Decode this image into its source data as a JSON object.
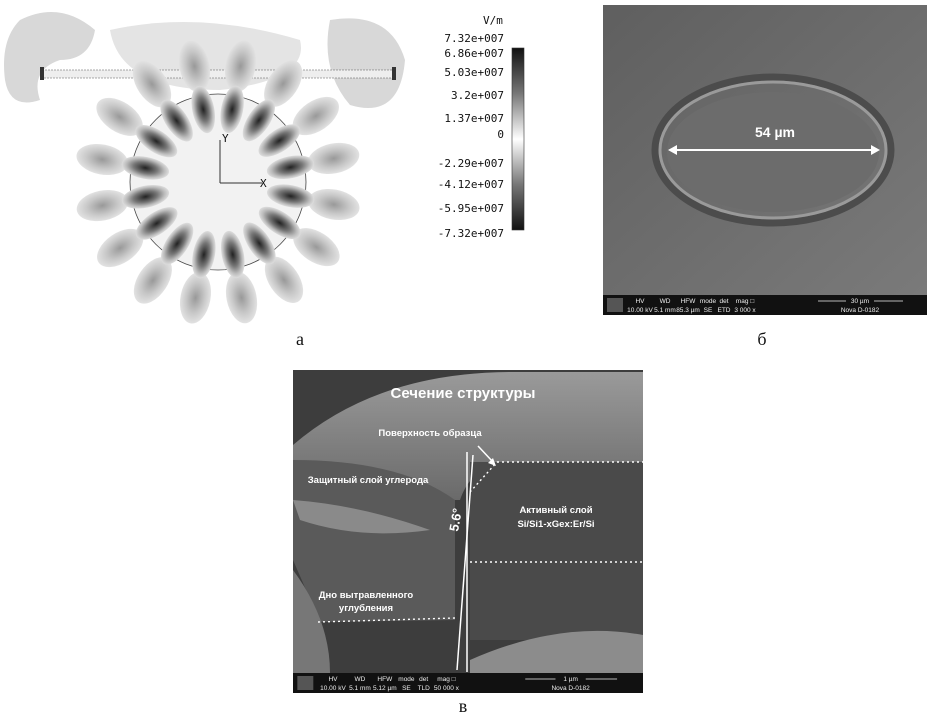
{
  "panel_a": {
    "unit": "V/m",
    "scale": [
      "7.32e+007",
      "6.86e+007",
      "5.03e+007",
      "3.2e+007",
      "1.37e+007",
      "0",
      "-2.29e+007",
      "-4.12e+007",
      "-5.95e+007",
      "-7.32e+007"
    ],
    "axis_y": "Y",
    "axis_x": "X",
    "caption": "а"
  },
  "panel_b": {
    "dimension": "54 µm",
    "info_bar": {
      "headers": [
        "HV",
        "WD",
        "HFW",
        "mode",
        "det",
        "mag □"
      ],
      "values": [
        "10.00 kV",
        "5.1 mm",
        "85.3 µm",
        "SE",
        "ETD",
        "3 000 x"
      ],
      "scale": "30 µm",
      "model": "Nova D-0182"
    },
    "caption": "б"
  },
  "panel_c": {
    "title": "Сечение структуры",
    "surface": "Поверхность образца",
    "carbon": "Защитный слой углерода",
    "active": [
      "Активный слой",
      "Si/Si1-xGex:Er/Si"
    ],
    "bottom": [
      "Дно вытравленного",
      "углубления"
    ],
    "angle": "5.6°",
    "info_bar": {
      "headers": [
        "HV",
        "WD",
        "HFW",
        "mode",
        "det",
        "mag □"
      ],
      "values": [
        "10.00 kV",
        "5.1 mm",
        "5.12 µm",
        "SE",
        "TLD",
        "50 000 x"
      ],
      "scale": "1 µm",
      "model": "Nova D-0182"
    },
    "caption": "в"
  }
}
